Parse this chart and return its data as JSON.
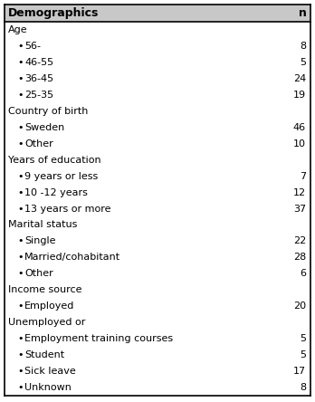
{
  "header": [
    "Demographics",
    "n"
  ],
  "rows": [
    {
      "type": "category",
      "label": "Age",
      "n": null
    },
    {
      "type": "item",
      "label": "56-",
      "n": "8"
    },
    {
      "type": "item",
      "label": "46-55",
      "n": "5"
    },
    {
      "type": "item",
      "label": "36-45",
      "n": "24"
    },
    {
      "type": "item",
      "label": "25-35",
      "n": "19"
    },
    {
      "type": "category",
      "label": "Country of birth",
      "n": null
    },
    {
      "type": "item",
      "label": "Sweden",
      "n": "46"
    },
    {
      "type": "item",
      "label": "Other",
      "n": "10"
    },
    {
      "type": "category",
      "label": "Years of education",
      "n": null
    },
    {
      "type": "item",
      "label": "9 years or less",
      "n": "7"
    },
    {
      "type": "item",
      "label": "10 -12 years",
      "n": "12"
    },
    {
      "type": "item",
      "label": "13 years or more",
      "n": "37"
    },
    {
      "type": "category",
      "label": "Marital status",
      "n": null
    },
    {
      "type": "item",
      "label": "Single",
      "n": "22"
    },
    {
      "type": "item",
      "label": "Married/cohabitant",
      "n": "28"
    },
    {
      "type": "item",
      "label": "Other",
      "n": "6"
    },
    {
      "type": "category",
      "label": "Income source",
      "n": null
    },
    {
      "type": "item",
      "label": "Employed",
      "n": "20"
    },
    {
      "type": "category",
      "label": "Unemployed or",
      "n": null
    },
    {
      "type": "item",
      "label": "Employment training courses",
      "n": "5"
    },
    {
      "type": "item",
      "label": "Student",
      "n": "5"
    },
    {
      "type": "item",
      "label": "Sick leave",
      "n": "17"
    },
    {
      "type": "item",
      "label": "Unknown",
      "n": "8"
    }
  ],
  "fig_width": 3.48,
  "fig_height": 4.44,
  "dpi": 100,
  "font_size": 8.0,
  "header_font_size": 9.0,
  "bg_color": "#ffffff",
  "header_bg_color": "#c8c8c8",
  "border_color": "#000000",
  "text_color": "#000000",
  "bullet": "•"
}
